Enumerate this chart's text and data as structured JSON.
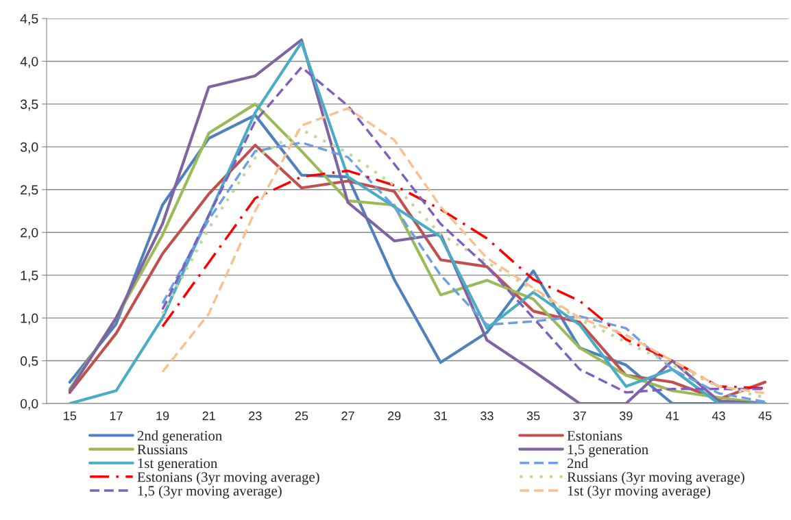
{
  "chart_data": {
    "type": "line",
    "categories": [
      "15",
      "17",
      "19",
      "21",
      "23",
      "25",
      "27",
      "29",
      "31",
      "33",
      "35",
      "37",
      "39",
      "41",
      "43",
      "45"
    ],
    "ylim": [
      0,
      4.5
    ],
    "yticks": [
      {
        "value": 0,
        "label": "0,0"
      },
      {
        "value": 0.5,
        "label": "0,5"
      },
      {
        "value": 1,
        "label": "1,0"
      },
      {
        "value": 1.5,
        "label": "1,5"
      },
      {
        "value": 2,
        "label": "2,0"
      },
      {
        "value": 2.5,
        "label": "2,5"
      },
      {
        "value": 3,
        "label": "3,0"
      },
      {
        "value": 3.5,
        "label": "3,5"
      },
      {
        "value": 4,
        "label": "4,0"
      },
      {
        "value": 4.5,
        "label": "4,5"
      }
    ],
    "grid": "y",
    "legend": "bottom",
    "marker": "none",
    "series": [
      {
        "name": "2nd generation",
        "color": "#4f81bd",
        "line_style": "solid",
        "values": [
          0.25,
          0.93,
          2.32,
          3.1,
          3.37,
          2.67,
          2.65,
          1.45,
          0.48,
          0.83,
          1.55,
          0.65,
          0.45,
          0.0,
          0.0,
          0.0
        ]
      },
      {
        "name": "Estonians",
        "color": "#c0504d",
        "line_style": "solid",
        "values": [
          0.13,
          0.82,
          1.75,
          2.45,
          3.02,
          2.52,
          2.6,
          2.48,
          1.68,
          1.6,
          1.08,
          0.95,
          0.33,
          0.25,
          0.05,
          0.25
        ]
      },
      {
        "name": "Russians",
        "color": "#9bbb59",
        "line_style": "solid",
        "values": [
          0.17,
          1.0,
          1.97,
          3.16,
          3.5,
          2.95,
          2.37,
          2.32,
          1.27,
          1.44,
          1.22,
          0.65,
          0.33,
          0.15,
          0.07,
          0.0
        ]
      },
      {
        "name": "1,5 generation",
        "color": "#8064a2",
        "line_style": "solid",
        "values": [
          0.15,
          1.0,
          2.1,
          3.7,
          3.83,
          4.25,
          2.35,
          1.9,
          1.98,
          0.74,
          0.38,
          0.0,
          0.0,
          0.5,
          0.03,
          0.0
        ]
      },
      {
        "name": "1st generation",
        "color": "#4bacc6",
        "line_style": "solid",
        "values": [
          0.0,
          0.15,
          1.0,
          2.2,
          3.4,
          4.22,
          2.65,
          2.3,
          1.95,
          0.88,
          1.3,
          0.92,
          0.2,
          0.4,
          0.0,
          0.0
        ]
      },
      {
        "name": "2nd",
        "color": "#6f9fe0",
        "line_style": "dashed",
        "values": [
          null,
          null,
          1.17,
          2.15,
          2.95,
          3.05,
          2.88,
          2.3,
          1.5,
          0.92,
          0.96,
          1.02,
          0.88,
          0.4,
          0.12,
          0.02
        ]
      },
      {
        "name": "Estonians (3yr moving average)",
        "color": "#ff0000",
        "line_style": "dashdot",
        "values": [
          null,
          null,
          0.9,
          1.65,
          2.4,
          2.65,
          2.72,
          2.55,
          2.27,
          1.93,
          1.45,
          1.2,
          0.75,
          0.5,
          0.2,
          0.18
        ]
      },
      {
        "name": "Russians (3yr moving average)",
        "color": "#c3d69b",
        "line_style": "dotted",
        "values": [
          null,
          null,
          1.05,
          2.05,
          2.87,
          3.2,
          2.93,
          2.55,
          1.98,
          1.65,
          1.33,
          0.98,
          0.72,
          0.45,
          0.2,
          0.07
        ]
      },
      {
        "name": "1,5 (3yr moving average)",
        "color": "#7f5fbf",
        "line_style": "dashed",
        "values": [
          null,
          null,
          1.1,
          2.2,
          3.3,
          3.93,
          3.48,
          2.8,
          2.1,
          1.6,
          1.0,
          0.4,
          0.13,
          0.17,
          0.17,
          0.17
        ]
      },
      {
        "name": "1st (3yr moving average)",
        "color": "#fac090",
        "line_style": "dashed",
        "values": [
          null,
          null,
          0.37,
          1.05,
          2.25,
          3.25,
          3.45,
          3.08,
          2.3,
          1.7,
          1.35,
          1.0,
          0.8,
          0.5,
          0.2,
          0.12
        ]
      }
    ]
  }
}
